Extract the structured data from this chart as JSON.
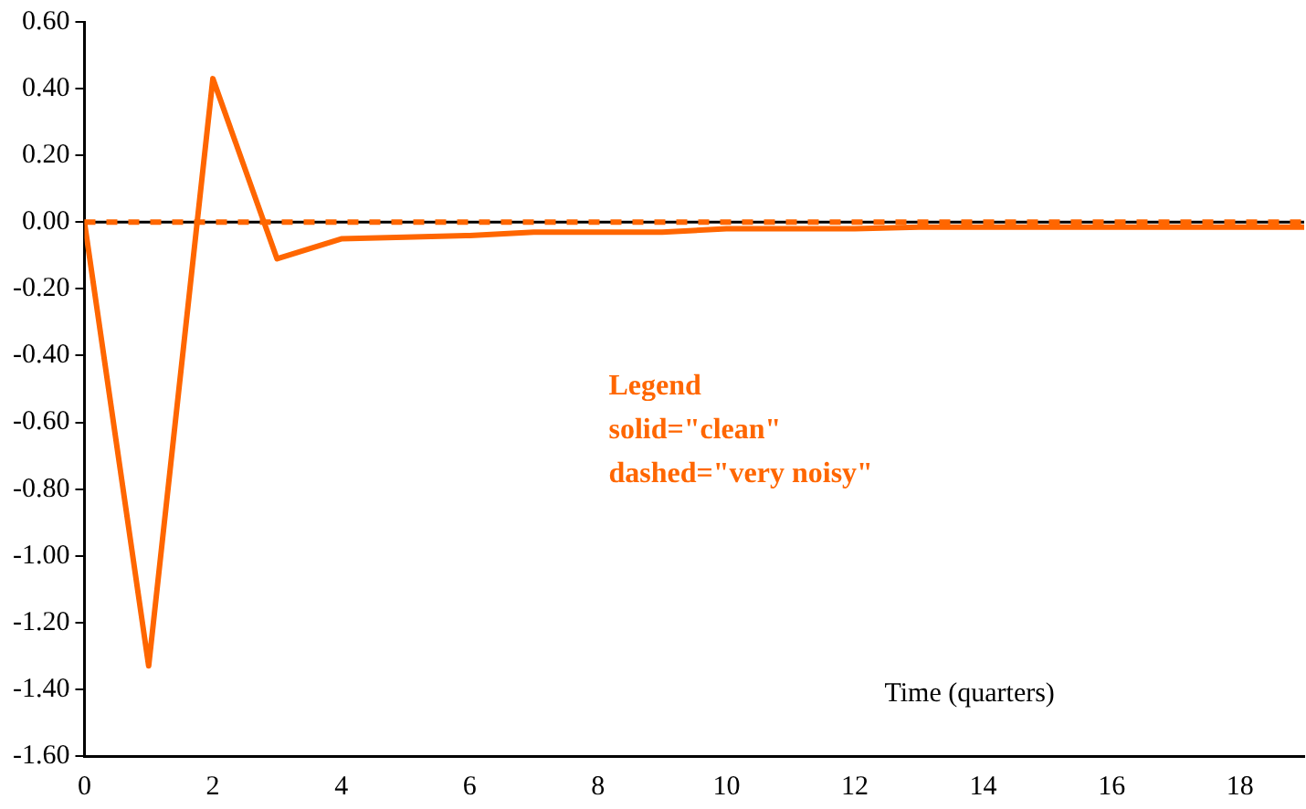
{
  "chart_data": {
    "type": "line",
    "xlabel": "Time (quarters)",
    "annotations": [
      "Legend",
      "solid=\"clean\"",
      "dashed=\"very noisy\""
    ],
    "x": [
      0,
      1,
      2,
      3,
      4,
      5,
      6,
      7,
      8,
      9,
      10,
      11,
      12,
      13,
      14,
      15,
      16,
      17,
      18,
      19
    ],
    "series": [
      {
        "color": "#ff6600",
        "line_style": "solid",
        "values": [
          0,
          -1.33,
          0.43,
          -0.11,
          -0.05,
          -0.045,
          -0.04,
          -0.03,
          -0.03,
          -0.03,
          -0.02,
          -0.02,
          -0.02,
          -0.015,
          -0.015,
          -0.015,
          -0.015,
          -0.015,
          -0.015,
          -0.015
        ]
      },
      {
        "color": "#ff6600",
        "line_style": "dashed",
        "values": [
          0,
          0,
          0,
          0,
          0,
          0,
          0,
          0,
          0,
          0,
          0,
          0,
          0,
          0,
          0,
          0,
          0,
          0,
          0,
          0
        ]
      }
    ],
    "xlim": [
      0,
      19
    ],
    "xticks": [
      0,
      2,
      4,
      6,
      8,
      10,
      12,
      14,
      16,
      18
    ],
    "ylim": [
      -1.6,
      0.6
    ],
    "yticks": [
      {
        "value": -1.6,
        "label": "-1.60"
      },
      {
        "value": -1.4,
        "label": "-1.40"
      },
      {
        "value": -1.2,
        "label": "-1.20"
      },
      {
        "value": -1,
        "label": "-1.00"
      },
      {
        "value": -0.8,
        "label": "-0.80"
      },
      {
        "value": -0.6,
        "label": "-0.60"
      },
      {
        "value": -0.4,
        "label": "-0.40"
      },
      {
        "value": -0.2,
        "label": "-0.20"
      },
      {
        "value": 0,
        "label": "0.00"
      },
      {
        "value": 0.2,
        "label": "0.20"
      },
      {
        "value": 0.4,
        "label": "0.40"
      },
      {
        "value": 0.6,
        "label": "0.60"
      }
    ],
    "ref_lines": [
      {
        "axis": "y",
        "value": 0,
        "color": "#000000"
      }
    ],
    "grid": false,
    "legend": false,
    "marker": "none"
  }
}
